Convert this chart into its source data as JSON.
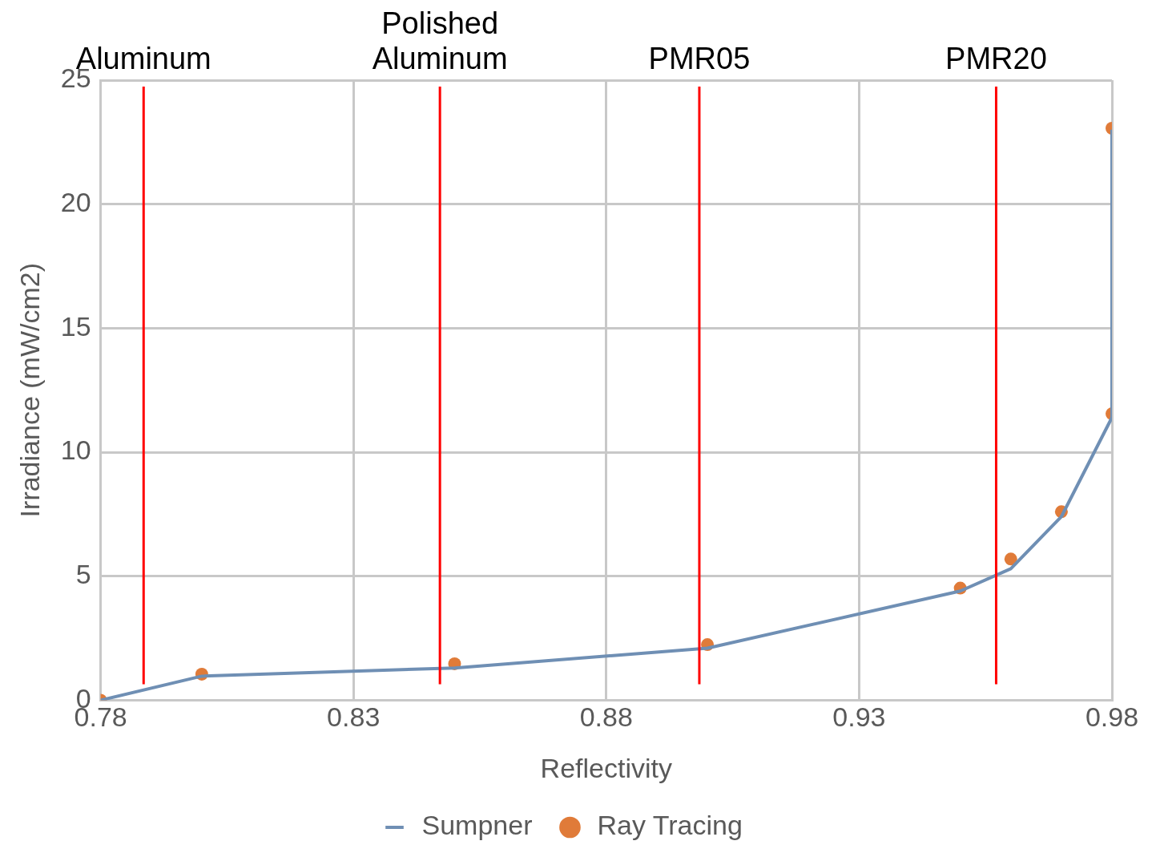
{
  "chart_data": {
    "type": "line",
    "xlabel": "Reflectivity",
    "ylabel": "Irradiance (mW/cm2)",
    "xlim": [
      0.78,
      0.98
    ],
    "xticks": [
      0.78,
      0.83,
      0.88,
      0.93,
      0.98
    ],
    "ylim": [
      0,
      25
    ],
    "yticks": [
      0,
      5,
      10,
      15,
      20,
      25
    ],
    "grid": true,
    "legend": "bottom",
    "series": [
      {
        "name": "Sumpner",
        "marker": "none",
        "color": "#6f8fb4",
        "x": [
          0.78,
          0.8,
          0.85,
          0.9,
          0.95,
          0.96,
          0.97,
          0.98,
          0.98
        ],
        "values": [
          0,
          0.97,
          1.3,
          2.1,
          4.4,
          5.3,
          7.4,
          11.4,
          23.0
        ]
      },
      {
        "name": "Ray Tracing",
        "type": "scatter",
        "marker": "circle",
        "color": "#e07b39",
        "x": [
          0.78,
          0.8,
          0.85,
          0.9,
          0.95,
          0.96,
          0.97,
          0.98,
          0.98
        ],
        "values": [
          0,
          1.05,
          1.47,
          2.24,
          4.52,
          5.69,
          7.6,
          11.55,
          23.06
        ]
      }
    ],
    "ref_lines": [
      {
        "axis": "x",
        "value": 0.7885,
        "label": "Aluminum",
        "color": "#ff0000"
      },
      {
        "axis": "x",
        "value": 0.8471,
        "label": "Polished Aluminum",
        "color": "#ff0000"
      },
      {
        "axis": "x",
        "value": 0.8984,
        "label": "PMR05",
        "color": "#ff0000"
      },
      {
        "axis": "x",
        "value": 0.9571,
        "label": "PMR20",
        "color": "#ff0000"
      }
    ]
  }
}
